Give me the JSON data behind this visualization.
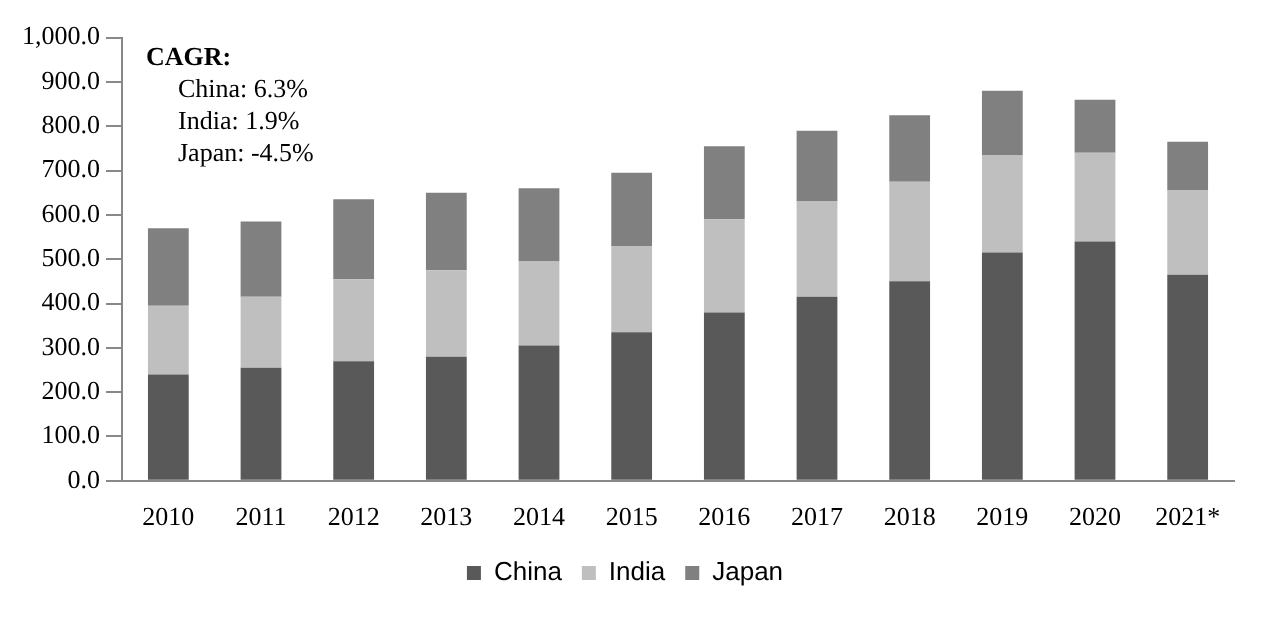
{
  "chart_data": {
    "type": "bar",
    "stacked": true,
    "categories": [
      "2010",
      "2011",
      "2012",
      "2013",
      "2014",
      "2015",
      "2016",
      "2017",
      "2018",
      "2019",
      "2020",
      "2021*"
    ],
    "series": [
      {
        "name": "China",
        "color": "#595959",
        "values": [
          240,
          255,
          270,
          280,
          305,
          335,
          380,
          415,
          450,
          515,
          540,
          465
        ]
      },
      {
        "name": "India",
        "color": "#bfbfbf",
        "values": [
          155,
          160,
          185,
          195,
          190,
          195,
          210,
          215,
          225,
          220,
          200,
          190
        ]
      },
      {
        "name": "Japan",
        "color": "#808080",
        "values": [
          175,
          170,
          180,
          175,
          165,
          165,
          165,
          160,
          150,
          145,
          120,
          110
        ]
      }
    ],
    "ylim": [
      0,
      1000
    ],
    "yticks": [
      {
        "value": 0,
        "label": "0.0"
      },
      {
        "value": 100,
        "label": "100.0"
      },
      {
        "value": 200,
        "label": "200.0"
      },
      {
        "value": 300,
        "label": "300.0"
      },
      {
        "value": 400,
        "label": "400.0"
      },
      {
        "value": 500,
        "label": "500.0"
      },
      {
        "value": 600,
        "label": "600.0"
      },
      {
        "value": 700,
        "label": "700.0"
      },
      {
        "value": 800,
        "label": "800.0"
      },
      {
        "value": 900,
        "label": "900.0"
      },
      {
        "value": 1000,
        "label": "1,000.0"
      }
    ],
    "annotations": [
      "CAGR:",
      "China: 6.3%",
      "India: 1.9%",
      "Japan: -4.5%"
    ],
    "grid": false,
    "legend": "bottom"
  }
}
